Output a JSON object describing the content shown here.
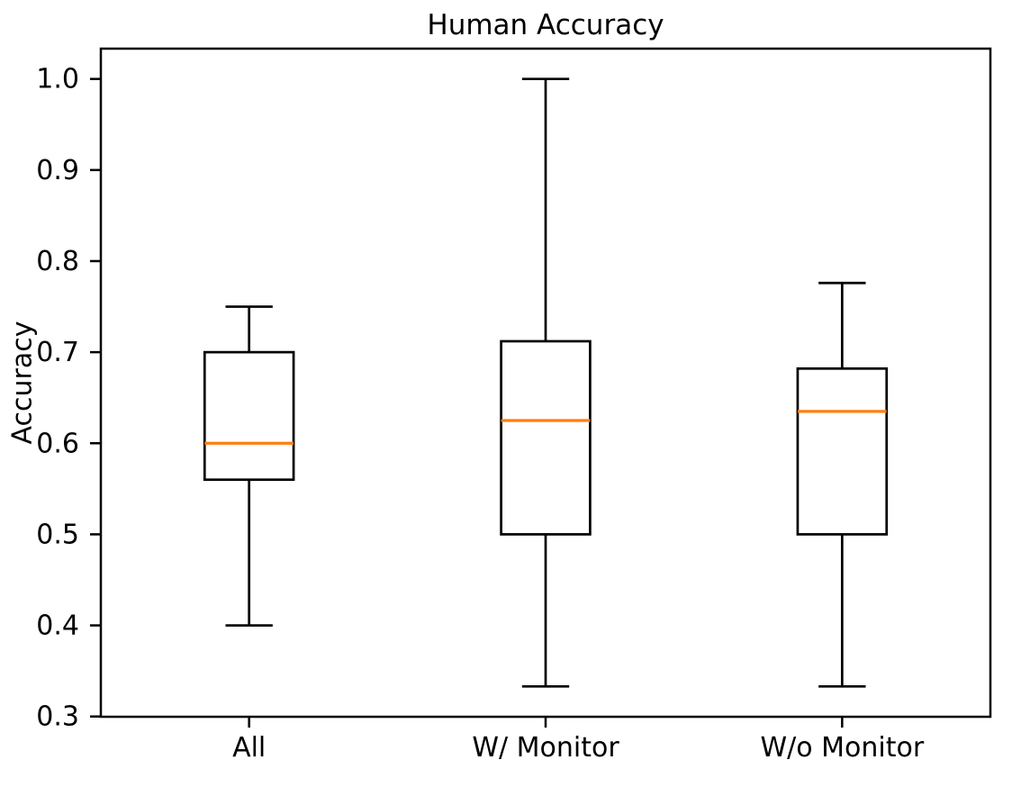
{
  "chart_data": {
    "type": "boxplot",
    "title": "Human Accuracy",
    "xlabel": "",
    "ylabel": "Accuracy",
    "categories": [
      "All",
      "W/ Monitor",
      "W/o Monitor"
    ],
    "series": [
      {
        "name": "All",
        "whisker_low": 0.4,
        "q1": 0.56,
        "median": 0.6,
        "q3": 0.7,
        "whisker_high": 0.75
      },
      {
        "name": "W/ Monitor",
        "whisker_low": 0.333,
        "q1": 0.5,
        "median": 0.625,
        "q3": 0.712,
        "whisker_high": 1.0
      },
      {
        "name": "W/o Monitor",
        "whisker_low": 0.333,
        "q1": 0.5,
        "median": 0.635,
        "q3": 0.682,
        "whisker_high": 0.776
      }
    ],
    "ylim": [
      0.2997,
      1.0333
    ],
    "yticks": [
      0.3,
      0.4,
      0.5,
      0.6,
      0.7,
      0.8,
      0.9,
      1.0
    ],
    "ytick_labels": [
      "0.3",
      "0.4",
      "0.5",
      "0.6",
      "0.7",
      "0.8",
      "0.9",
      "1.0"
    ],
    "grid": false,
    "legend": "none",
    "colors": {
      "box_line": "#000000",
      "median_line": "#ff7f0e",
      "background": "#ffffff",
      "text": "#000000"
    }
  }
}
